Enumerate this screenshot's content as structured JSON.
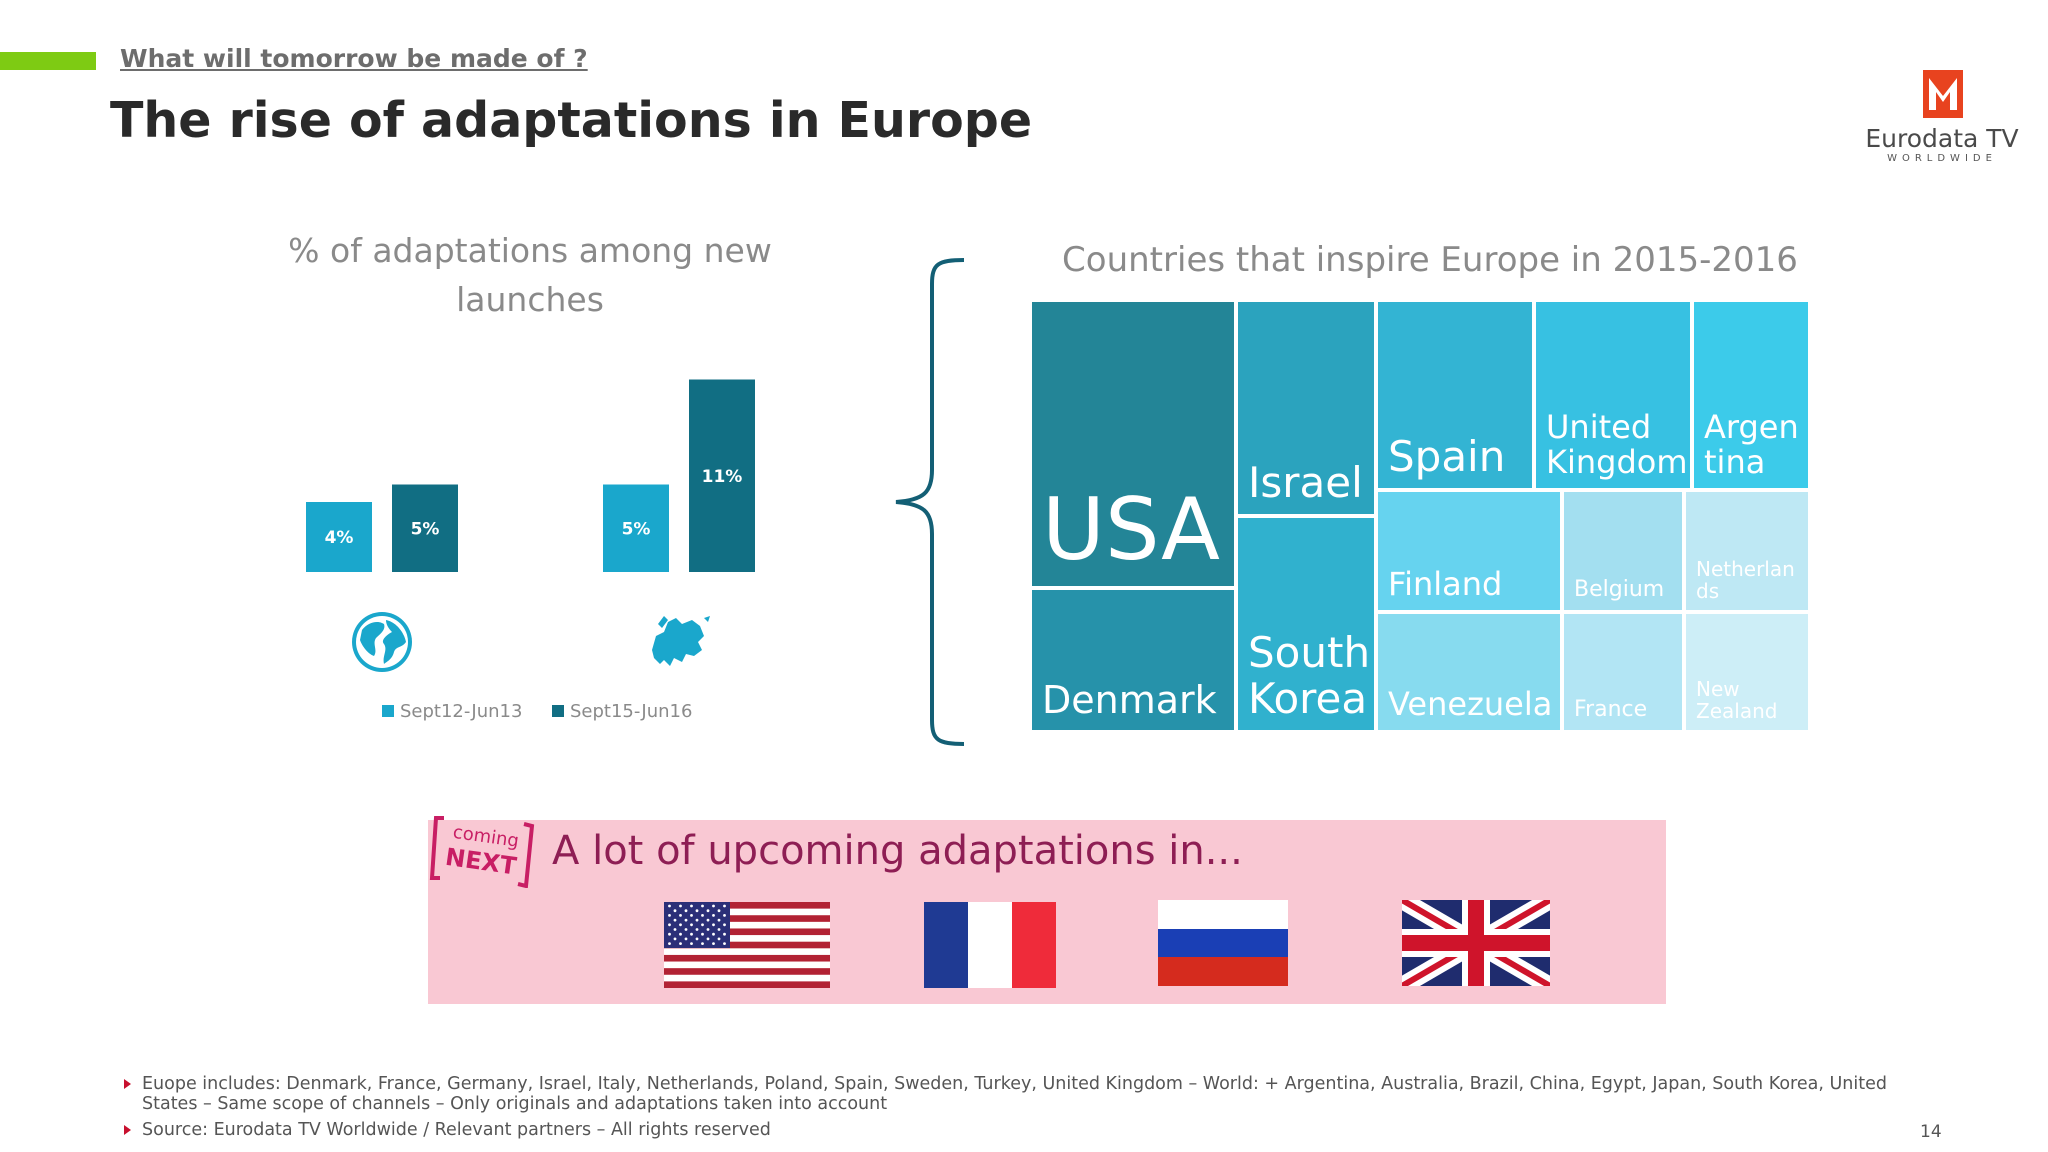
{
  "header": {
    "kicker": "What will tomorrow be made of ?",
    "title": "The rise of adaptations in Europe"
  },
  "logo": {
    "name": "Eurodata TV",
    "tagline": "WORLDWIDE",
    "color": "#e8431f"
  },
  "chart_data": [
    {
      "type": "bar",
      "title": "% of adaptations among new launches",
      "categories": [
        "world-icon",
        "europe-icon"
      ],
      "series": [
        {
          "name": "Sept12-Jun13",
          "values": [
            4,
            5
          ],
          "labels": [
            "4%",
            "5%"
          ],
          "color": "#1aa7cc"
        },
        {
          "name": "Sept15-Jun16",
          "values": [
            5,
            11
          ],
          "labels": [
            "5%",
            "11%"
          ],
          "color": "#116e83"
        }
      ],
      "ylim": [
        0,
        12
      ],
      "legend": "bottom"
    },
    {
      "type": "treemap",
      "title": "Countries that inspire Europe in 2015-2016",
      "tiles": [
        {
          "label": "USA",
          "color": "#238597"
        },
        {
          "label": "Denmark",
          "color": "#2692aa"
        },
        {
          "label": "Israel",
          "color": "#2ba3be"
        },
        {
          "label": "South Korea",
          "color": "#30b1ce"
        },
        {
          "label": "Spain",
          "color": "#33b4d3"
        },
        {
          "label": "United Kingdom",
          "color": "#37c1e2"
        },
        {
          "label": "Argen tina",
          "color": "#3ccbea"
        },
        {
          "label": "Finland",
          "color": "#66d3ef"
        },
        {
          "label": "Venezuela",
          "color": "#87dbef"
        },
        {
          "label": "Belgium",
          "color": "#a3dff0"
        },
        {
          "label": "France",
          "color": "#b2e5f4"
        },
        {
          "label": "Netherlan ds",
          "color": "#bee8f4"
        },
        {
          "label": "New Zealand",
          "color": "#cdeef7"
        }
      ]
    }
  ],
  "banner": {
    "badge_top": "coming",
    "badge_bottom": "NEXT",
    "text": "A lot of upcoming adaptations in...",
    "flags": [
      "usa-flag",
      "france-flag",
      "russia-flag",
      "uk-flag"
    ]
  },
  "footnotes": [
    "Euope includes: Denmark, France, Germany, Israel, Italy, Netherlands, Poland, Spain, Sweden, Turkey, United Kingdom – World: + Argentina, Australia, Brazil, China, Egypt, Japan, South Korea, United States – Same scope of channels – Only originals and adaptations taken into account",
    "Source: Eurodata TV Worldwide / Relevant partners – All rights reserved"
  ],
  "page_number": "14"
}
